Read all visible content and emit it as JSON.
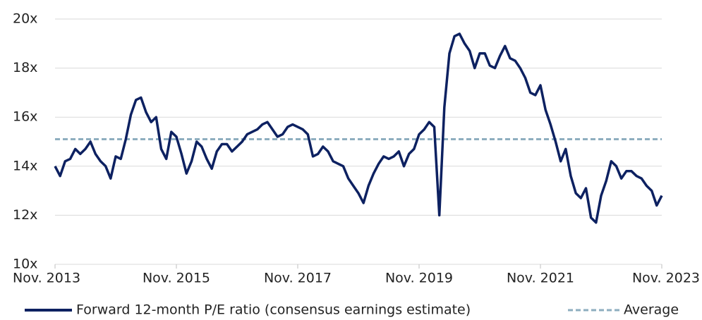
{
  "chart_data": {
    "type": "line",
    "x": [
      "2013-11",
      "2013-12",
      "2014-01",
      "2014-02",
      "2014-03",
      "2014-04",
      "2014-05",
      "2014-06",
      "2014-07",
      "2014-08",
      "2014-09",
      "2014-10",
      "2014-11",
      "2014-12",
      "2015-01",
      "2015-02",
      "2015-03",
      "2015-04",
      "2015-05",
      "2015-06",
      "2015-07",
      "2015-08",
      "2015-09",
      "2015-10",
      "2015-11",
      "2015-12",
      "2016-01",
      "2016-02",
      "2016-03",
      "2016-04",
      "2016-05",
      "2016-06",
      "2016-07",
      "2016-08",
      "2016-09",
      "2016-10",
      "2016-11",
      "2016-12",
      "2017-01",
      "2017-02",
      "2017-03",
      "2017-04",
      "2017-05",
      "2017-06",
      "2017-07",
      "2017-08",
      "2017-09",
      "2017-10",
      "2017-11",
      "2017-12",
      "2018-01",
      "2018-02",
      "2018-03",
      "2018-04",
      "2018-05",
      "2018-06",
      "2018-07",
      "2018-08",
      "2018-09",
      "2018-10",
      "2018-11",
      "2018-12",
      "2019-01",
      "2019-02",
      "2019-03",
      "2019-04",
      "2019-05",
      "2019-06",
      "2019-07",
      "2019-08",
      "2019-09",
      "2019-10",
      "2019-11",
      "2019-12",
      "2020-01",
      "2020-02",
      "2020-03",
      "2020-04",
      "2020-05",
      "2020-06",
      "2020-07",
      "2020-08",
      "2020-09",
      "2020-10",
      "2020-11",
      "2020-12",
      "2021-01",
      "2021-02",
      "2021-03",
      "2021-04",
      "2021-05",
      "2021-06",
      "2021-07",
      "2021-08",
      "2021-09",
      "2021-10",
      "2021-11",
      "2021-12",
      "2022-01",
      "2022-02",
      "2022-03",
      "2022-04",
      "2022-05",
      "2022-06",
      "2022-07",
      "2022-08",
      "2022-09",
      "2022-10",
      "2022-11",
      "2022-12",
      "2023-01",
      "2023-02",
      "2023-03",
      "2023-04",
      "2023-05",
      "2023-06",
      "2023-07",
      "2023-08",
      "2023-09",
      "2023-10",
      "2023-11"
    ],
    "series": [
      {
        "name": "Forward 12-month P/E ratio (consensus earnings estimate)",
        "color": "#0d2161",
        "values": [
          14.0,
          13.6,
          14.2,
          14.3,
          14.7,
          14.5,
          14.7,
          15.0,
          14.5,
          14.2,
          14.0,
          13.5,
          14.4,
          14.3,
          15.1,
          16.1,
          16.7,
          16.8,
          16.2,
          15.8,
          16.0,
          14.7,
          14.3,
          15.4,
          15.2,
          14.5,
          13.7,
          14.2,
          15.0,
          14.8,
          14.3,
          13.9,
          14.6,
          14.9,
          14.9,
          14.6,
          14.8,
          15.0,
          15.3,
          15.4,
          15.5,
          15.7,
          15.8,
          15.5,
          15.2,
          15.3,
          15.6,
          15.7,
          15.6,
          15.5,
          15.3,
          14.4,
          14.5,
          14.8,
          14.6,
          14.2,
          14.1,
          14.0,
          13.5,
          13.2,
          12.9,
          12.5,
          13.2,
          13.7,
          14.1,
          14.4,
          14.3,
          14.4,
          14.6,
          14.0,
          14.5,
          14.7,
          15.3,
          15.5,
          15.8,
          15.6,
          12.0,
          16.4,
          18.6,
          19.3,
          19.4,
          19.0,
          18.7,
          18.0,
          18.6,
          18.6,
          18.1,
          18.0,
          18.5,
          18.9,
          18.4,
          18.3,
          18.0,
          17.6,
          17.0,
          16.9,
          17.3,
          16.3,
          15.7,
          15.0,
          14.2,
          14.7,
          13.6,
          12.9,
          12.7,
          13.1,
          11.9,
          11.7,
          12.8,
          13.4,
          14.2,
          14.0,
          13.5,
          13.8,
          13.8,
          13.6,
          13.5,
          13.2,
          13.0,
          12.4,
          12.8
        ]
      }
    ],
    "average": {
      "name": "Average",
      "value": 15.1,
      "color": "#8eaebf"
    },
    "xlim": [
      "2013-11",
      "2023-11"
    ],
    "xticks": [
      {
        "value": "2013-11",
        "label": "Nov. 2013"
      },
      {
        "value": "2015-11",
        "label": "Nov. 2015"
      },
      {
        "value": "2017-11",
        "label": "Nov. 2017"
      },
      {
        "value": "2019-11",
        "label": "Nov. 2019"
      },
      {
        "value": "2021-11",
        "label": "Nov. 2021"
      },
      {
        "value": "2023-11",
        "label": "Nov. 2023"
      }
    ],
    "ylim": [
      10,
      20
    ],
    "yticks": [
      {
        "value": 10,
        "label": "10x"
      },
      {
        "value": 12,
        "label": "12x"
      },
      {
        "value": 14,
        "label": "14x"
      },
      {
        "value": 16,
        "label": "16x"
      },
      {
        "value": 18,
        "label": "18x"
      },
      {
        "value": 20,
        "label": "20x"
      }
    ],
    "grid": true
  }
}
